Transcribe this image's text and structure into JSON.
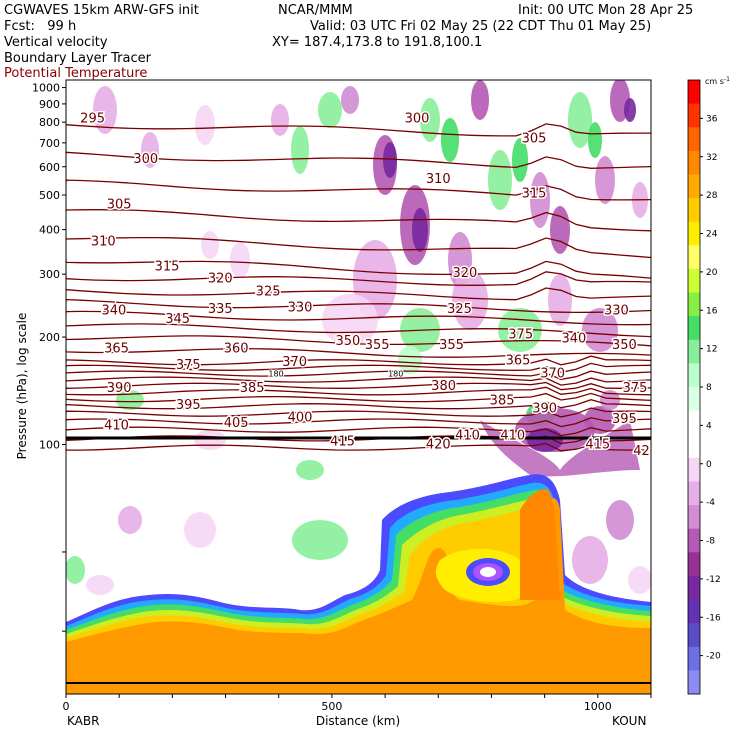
{
  "header": {
    "line1_left": "CGWAVES 15km ARW-GFS init",
    "line1_mid": "NCAR/MMM",
    "line1_right": "Init: 00 UTC Mon 28 Apr 25",
    "fcst": "Fcst:   99 h",
    "valid": "Valid: 03 UTC Fri 02 May 25 (22 CDT Thu 01 May 25)",
    "field1": "Vertical velocity",
    "field2": "Boundary Layer Tracer",
    "field3": "Potential Temperature",
    "xy": "XY= 187.4,173.8 to 191.8,100.1"
  },
  "chart_data": {
    "type": "heatmap",
    "title": "",
    "xlabel": "Distance (km)",
    "ylabel": "Pressure (hPa), log scale",
    "x_ticks": [
      0,
      500,
      1000
    ],
    "x_range": [
      0,
      1100
    ],
    "y_ticks": [
      100,
      200,
      300,
      400,
      500,
      600,
      700,
      800,
      900,
      1000
    ],
    "y_scale": "log",
    "y_range_hpa": [
      1050,
      20
    ],
    "endpoint_left": "KABR",
    "endpoint_right": "KOUN",
    "colorbar": {
      "unit": "cm s",
      "unit_exp": "-1",
      "ticks": [
        36,
        32,
        28,
        24,
        20,
        16,
        12,
        8,
        4,
        0,
        -4,
        -8,
        -12,
        -16,
        -20
      ],
      "colors": [
        "#ff0000",
        "#ff3300",
        "#ff6600",
        "#ff8800",
        "#ffaa00",
        "#ffcc00",
        "#ffee00",
        "#ffff66",
        "#ccff33",
        "#88ee44",
        "#44dd66",
        "#88ee99",
        "#bbffcc",
        "#ddffe6",
        "#ffffff",
        "#ffffff",
        "#f5d6f5",
        "#e6aee6",
        "#d28cd2",
        "#b45ab4",
        "#963296",
        "#7828a0",
        "#6432b4",
        "#5a4bc8",
        "#6e6ee6",
        "#8c8cf0"
      ]
    },
    "theta_labels": [
      {
        "value": "420",
        "x": 700,
        "p": 100
      },
      {
        "value": "415",
        "x": 520,
        "p": 102
      },
      {
        "value": "415",
        "x": 1000,
        "p": 100
      },
      {
        "value": "420",
        "x": 1090,
        "p": 96
      },
      {
        "value": "410",
        "x": 95,
        "p": 113
      },
      {
        "value": "405",
        "x": 320,
        "p": 115
      },
      {
        "value": "400",
        "x": 440,
        "p": 119
      },
      {
        "value": "410",
        "x": 755,
        "p": 106
      },
      {
        "value": "410",
        "x": 840,
        "p": 106
      },
      {
        "value": "395",
        "x": 230,
        "p": 129
      },
      {
        "value": "385",
        "x": 350,
        "p": 144
      },
      {
        "value": "390",
        "x": 100,
        "p": 144
      },
      {
        "value": "385",
        "x": 820,
        "p": 133
      },
      {
        "value": "390",
        "x": 900,
        "p": 126
      },
      {
        "value": "395",
        "x": 1050,
        "p": 118
      },
      {
        "value": "380",
        "x": 710,
        "p": 146
      },
      {
        "value": "375",
        "x": 1070,
        "p": 144
      },
      {
        "value": "375",
        "x": 230,
        "p": 167
      },
      {
        "value": "370",
        "x": 430,
        "p": 170
      },
      {
        "value": "365",
        "x": 95,
        "p": 186
      },
      {
        "value": "360",
        "x": 320,
        "p": 186
      },
      {
        "value": "350",
        "x": 530,
        "p": 195
      },
      {
        "value": "355",
        "x": 585,
        "p": 190
      },
      {
        "value": "355",
        "x": 725,
        "p": 190
      },
      {
        "value": "365",
        "x": 850,
        "p": 172
      },
      {
        "value": "370",
        "x": 915,
        "p": 158
      },
      {
        "value": "340",
        "x": 955,
        "p": 198
      },
      {
        "value": "350",
        "x": 1050,
        "p": 190
      },
      {
        "value": "375",
        "x": 855,
        "p": 203
      },
      {
        "value": "340",
        "x": 90,
        "p": 237
      },
      {
        "value": "345",
        "x": 210,
        "p": 225
      },
      {
        "value": "335",
        "x": 290,
        "p": 240
      },
      {
        "value": "330",
        "x": 440,
        "p": 242
      },
      {
        "value": "325",
        "x": 380,
        "p": 268
      },
      {
        "value": "325",
        "x": 740,
        "p": 240
      },
      {
        "value": "330",
        "x": 1035,
        "p": 237
      },
      {
        "value": "320",
        "x": 290,
        "p": 292
      },
      {
        "value": "315",
        "x": 190,
        "p": 315
      },
      {
        "value": "320",
        "x": 750,
        "p": 302
      },
      {
        "value": "310",
        "x": 70,
        "p": 370
      },
      {
        "value": "305",
        "x": 100,
        "p": 470
      },
      {
        "value": "315",
        "x": 880,
        "p": 505
      },
      {
        "value": "310",
        "x": 700,
        "p": 555
      },
      {
        "value": "300",
        "x": 150,
        "p": 630
      },
      {
        "value": "305",
        "x": 880,
        "p": 720
      },
      {
        "value": "300",
        "x": 660,
        "p": 820
      },
      {
        "value": "295",
        "x": 50,
        "p": 820
      }
    ],
    "trop_labels": [
      {
        "value": "180",
        "x": 395,
        "p": 158
      },
      {
        "value": "180",
        "x": 620,
        "p": 158
      }
    ],
    "grid": false,
    "legend": "right"
  }
}
